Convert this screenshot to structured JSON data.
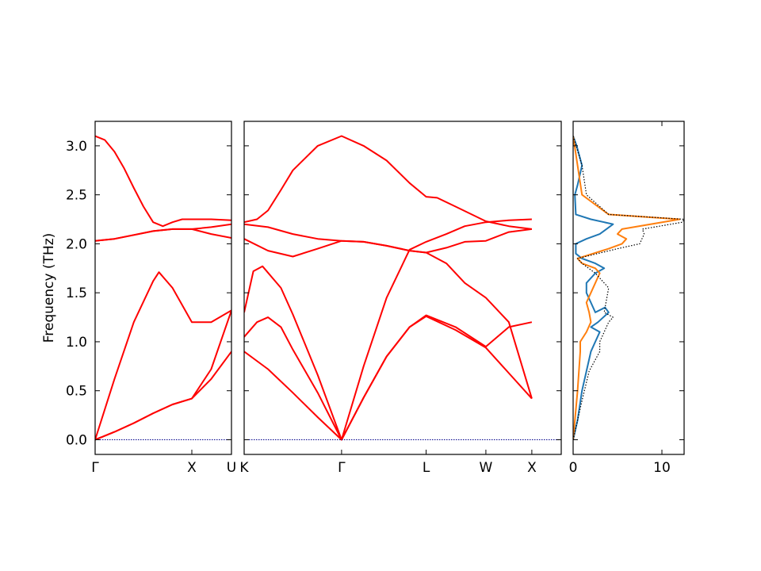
{
  "chart_data": {
    "type": "line",
    "title": "",
    "ylabel": "Frequency (THz)",
    "ylim": [
      -0.15,
      3.25
    ],
    "yticks": [
      "0.0",
      "0.5",
      "1.0",
      "1.5",
      "2.0",
      "2.5",
      "3.0"
    ],
    "band_color": "#ff0000",
    "zero_line_color": "#00008b",
    "panels": [
      {
        "id": "panel1",
        "xlim": [
          0,
          1.41
        ],
        "xticks": [
          {
            "pos": 0,
            "label": "Γ"
          },
          {
            "pos": 1.0,
            "label": "X"
          },
          {
            "pos": 1.41,
            "label": "U"
          }
        ],
        "bands": [
          {
            "x": [
              0,
              0.2,
              0.4,
              0.6,
              0.8,
              1.0,
              1.2,
              1.41
            ],
            "y": [
              0,
              0.08,
              0.17,
              0.27,
              0.36,
              0.42,
              0.72,
              1.32
            ]
          },
          {
            "x": [
              0,
              0.2,
              0.4,
              0.6,
              0.66,
              0.8,
              1.0,
              1.2,
              1.41
            ],
            "y": [
              0,
              0.62,
              1.2,
              1.62,
              1.71,
              1.55,
              1.2,
              1.2,
              1.32
            ]
          },
          {
            "x": [
              0,
              0.2,
              0.4,
              0.6,
              0.8,
              1.0,
              1.2,
              1.41
            ],
            "y": [
              0,
              0.08,
              0.17,
              0.27,
              0.36,
              0.42,
              0.62,
              0.9
            ]
          },
          {
            "x": [
              0,
              0.2,
              0.4,
              0.6,
              0.8,
              1.0,
              1.2,
              1.41
            ],
            "y": [
              2.03,
              2.05,
              2.09,
              2.13,
              2.15,
              2.15,
              2.1,
              2.06
            ]
          },
          {
            "x": [
              0,
              0.2,
              0.4,
              0.6,
              0.8,
              1.0,
              1.2,
              1.41
            ],
            "y": [
              2.03,
              2.05,
              2.09,
              2.13,
              2.15,
              2.15,
              2.17,
              2.2
            ]
          },
          {
            "x": [
              0,
              0.1,
              0.2,
              0.3,
              0.4,
              0.5,
              0.6,
              0.7,
              0.8,
              0.9,
              1.0,
              1.2,
              1.41
            ],
            "y": [
              3.1,
              3.06,
              2.94,
              2.77,
              2.57,
              2.38,
              2.22,
              2.18,
              2.22,
              2.25,
              2.25,
              2.25,
              2.24
            ]
          }
        ]
      },
      {
        "id": "panel2",
        "xlim": [
          0,
          3.45
        ],
        "xticks": [
          {
            "pos": 0,
            "label": "K"
          },
          {
            "pos": 1.06,
            "label": "Γ"
          },
          {
            "pos": 1.98,
            "label": "L"
          },
          {
            "pos": 2.63,
            "label": "W"
          },
          {
            "pos": 3.13,
            "label": "X"
          }
        ],
        "bands": [
          {
            "x": [
              0,
              0.26,
              0.53,
              0.8,
              1.06,
              1.3,
              1.55,
              1.8,
              1.98,
              2.3,
              2.63,
              2.88,
              3.13
            ],
            "y": [
              0.9,
              0.72,
              0.48,
              0.23,
              0,
              0.43,
              0.85,
              1.15,
              1.26,
              1.12,
              0.94,
              0.68,
              0.42
            ]
          },
          {
            "x": [
              0,
              0.14,
              0.26,
              0.4,
              0.53,
              0.8,
              1.06,
              1.3,
              1.55,
              1.8,
              1.98,
              2.3,
              2.63,
              2.88,
              3.13
            ],
            "y": [
              1.05,
              1.2,
              1.25,
              1.15,
              0.92,
              0.48,
              0,
              0.43,
              0.85,
              1.15,
              1.27,
              1.15,
              0.95,
              1.15,
              1.2
            ]
          },
          {
            "x": [
              0,
              0.1,
              0.2,
              0.4,
              0.53,
              0.8,
              1.06,
              1.3,
              1.55,
              1.8,
              1.98,
              2.2,
              2.4,
              2.63,
              2.88,
              3.13
            ],
            "y": [
              1.3,
              1.72,
              1.77,
              1.55,
              1.28,
              0.66,
              0,
              0.75,
              1.45,
              1.94,
              2.02,
              2.1,
              2.18,
              2.22,
              2.24,
              2.25
            ]
          },
          {
            "x": [
              0,
              0.26,
              0.53,
              0.8,
              1.06,
              1.3,
              1.55,
              1.8,
              1.98,
              2.2,
              2.4,
              2.63,
              2.88,
              3.13
            ],
            "y": [
              2.05,
              1.93,
              1.87,
              1.95,
              2.03,
              2.02,
              1.98,
              1.93,
              1.91,
              1.8,
              1.6,
              1.45,
              1.2,
              0.42
            ]
          },
          {
            "x": [
              0,
              0.26,
              0.53,
              0.8,
              1.06,
              1.3,
              1.55,
              1.8,
              1.98,
              2.2,
              2.4,
              2.63,
              2.88,
              3.13
            ],
            "y": [
              2.2,
              2.17,
              2.1,
              2.05,
              2.03,
              2.02,
              1.98,
              1.93,
              1.91,
              1.96,
              2.02,
              2.03,
              2.12,
              2.15
            ]
          },
          {
            "x": [
              0,
              0.14,
              0.26,
              0.4,
              0.53,
              0.8,
              1.06,
              1.3,
              1.55,
              1.8,
              1.98,
              2.1,
              2.3,
              2.63,
              2.88,
              3.13
            ],
            "y": [
              2.22,
              2.25,
              2.34,
              2.55,
              2.75,
              3.0,
              3.1,
              3.0,
              2.85,
              2.62,
              2.48,
              2.47,
              2.38,
              2.23,
              2.18,
              2.15
            ]
          }
        ]
      },
      {
        "id": "dos",
        "type": "line",
        "xlim": [
          0,
          12.5
        ],
        "xticks": [
          {
            "pos": 0,
            "label": "0"
          },
          {
            "pos": 10,
            "label": "10"
          }
        ],
        "series": [
          {
            "color": "#1f77b4",
            "style": "solid",
            "x": [
              0,
              0.5,
              1,
              1.5,
              2,
              2.5,
              3,
              2,
              2.8,
              4,
              3.6,
              2.5,
              2,
              1.5,
              1.5,
              2.5,
              3.5,
              2.5,
              1,
              0.3,
              0.3,
              1.5,
              3,
              4.5,
              2,
              0.3,
              0.2,
              0.5,
              1,
              0.4,
              0
            ],
            "y": [
              0,
              0.2,
              0.5,
              0.7,
              0.9,
              1.0,
              1.1,
              1.15,
              1.2,
              1.3,
              1.35,
              1.3,
              1.4,
              1.5,
              1.6,
              1.7,
              1.75,
              1.8,
              1.85,
              1.9,
              2.0,
              2.05,
              2.1,
              2.2,
              2.25,
              2.3,
              2.5,
              2.6,
              2.8,
              3.0,
              3.1
            ]
          },
          {
            "color": "#ff7f0e",
            "style": "solid",
            "x": [
              0,
              0.5,
              0.8,
              0.8,
              1.5,
              2,
              1.8,
              1.5,
              2,
              2.5,
              3,
              2.5,
              1,
              0.5,
              4,
              5.5,
              6,
              5,
              5.5,
              12,
              4,
              1,
              0.5,
              0
            ],
            "y": [
              0,
              0.5,
              0.9,
              1.0,
              1.1,
              1.2,
              1.3,
              1.4,
              1.5,
              1.6,
              1.7,
              1.75,
              1.8,
              1.85,
              1.95,
              2.0,
              2.05,
              2.1,
              2.15,
              2.25,
              2.3,
              2.5,
              2.8,
              3.1
            ]
          },
          {
            "color": "#000000",
            "style": "dotted",
            "x": [
              0,
              1,
              1.8,
              3,
              3,
              3.5,
              4,
              4.5,
              3.5,
              4,
              2.5,
              1,
              0.5,
              5,
              7.5,
              8,
              7.8,
              12.3,
              12.5,
              4,
              1.5,
              1,
              0
            ],
            "y": [
              0,
              0.4,
              0.7,
              0.9,
              1.0,
              1.1,
              1.2,
              1.25,
              1.3,
              1.55,
              1.7,
              1.8,
              1.85,
              1.95,
              2.0,
              2.1,
              2.15,
              2.22,
              2.25,
              2.3,
              2.5,
              2.8,
              3.1
            ]
          }
        ]
      }
    ]
  }
}
